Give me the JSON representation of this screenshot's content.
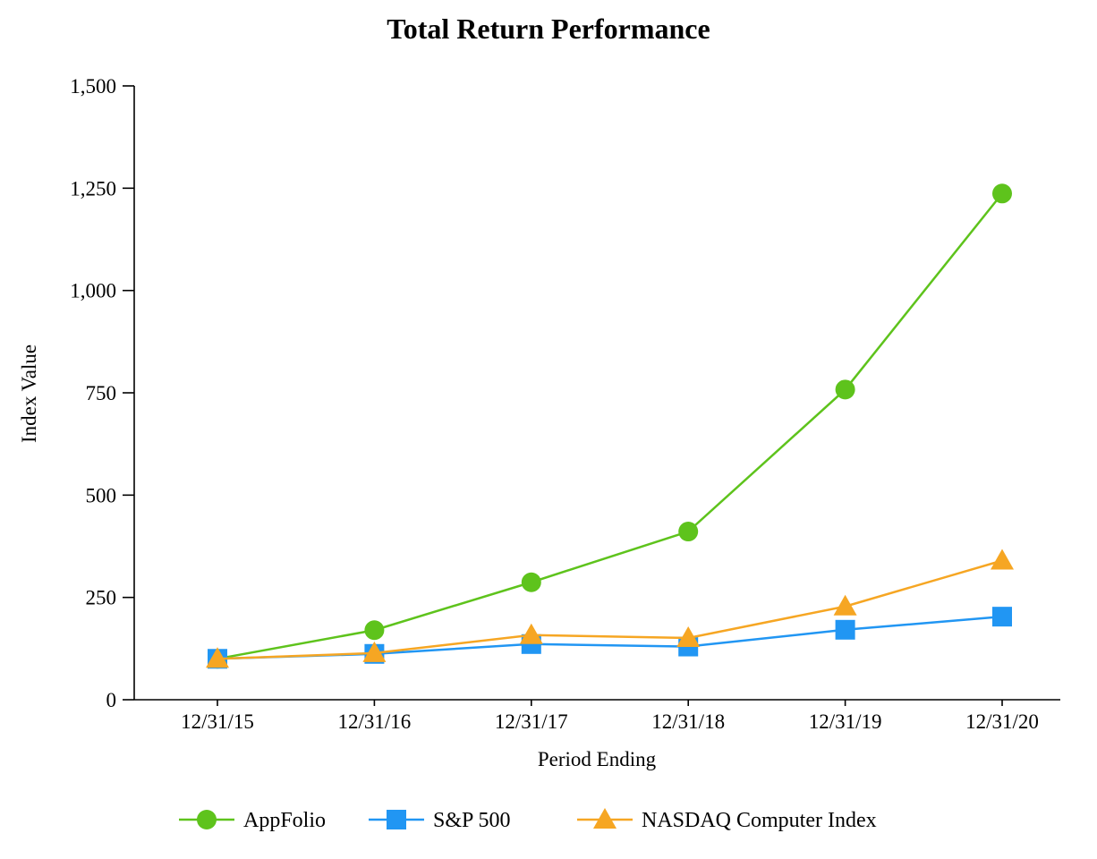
{
  "chart_data": {
    "type": "line",
    "title": "Total Return Performance",
    "xlabel": "Period Ending",
    "ylabel": "Index Value",
    "ylim": [
      0,
      1500
    ],
    "grid": false,
    "legend_position": "bottom",
    "yticks": [
      {
        "value": 0,
        "label": "0"
      },
      {
        "value": 250,
        "label": "250"
      },
      {
        "value": 500,
        "label": "500"
      },
      {
        "value": 750,
        "label": "750"
      },
      {
        "value": 1000,
        "label": "1,000"
      },
      {
        "value": 1250,
        "label": "1,250"
      },
      {
        "value": 1500,
        "label": "1,500"
      }
    ],
    "categories": [
      "12/31/15",
      "12/31/16",
      "12/31/17",
      "12/31/18",
      "12/31/19",
      "12/31/20"
    ],
    "series": [
      {
        "name": "AppFolio",
        "color": "#5EC31C",
        "marker": "circle",
        "values": [
          100,
          170,
          287,
          411,
          758,
          1237
        ]
      },
      {
        "name": "S&P 500",
        "color": "#2196F3",
        "marker": "square",
        "values": [
          100,
          112,
          136,
          130,
          171,
          203
        ]
      },
      {
        "name": "NASDAQ Computer Index",
        "color": "#F6A623",
        "marker": "triangle",
        "values": [
          100,
          114,
          158,
          151,
          228,
          340
        ]
      }
    ],
    "axis_color": "#000000"
  }
}
